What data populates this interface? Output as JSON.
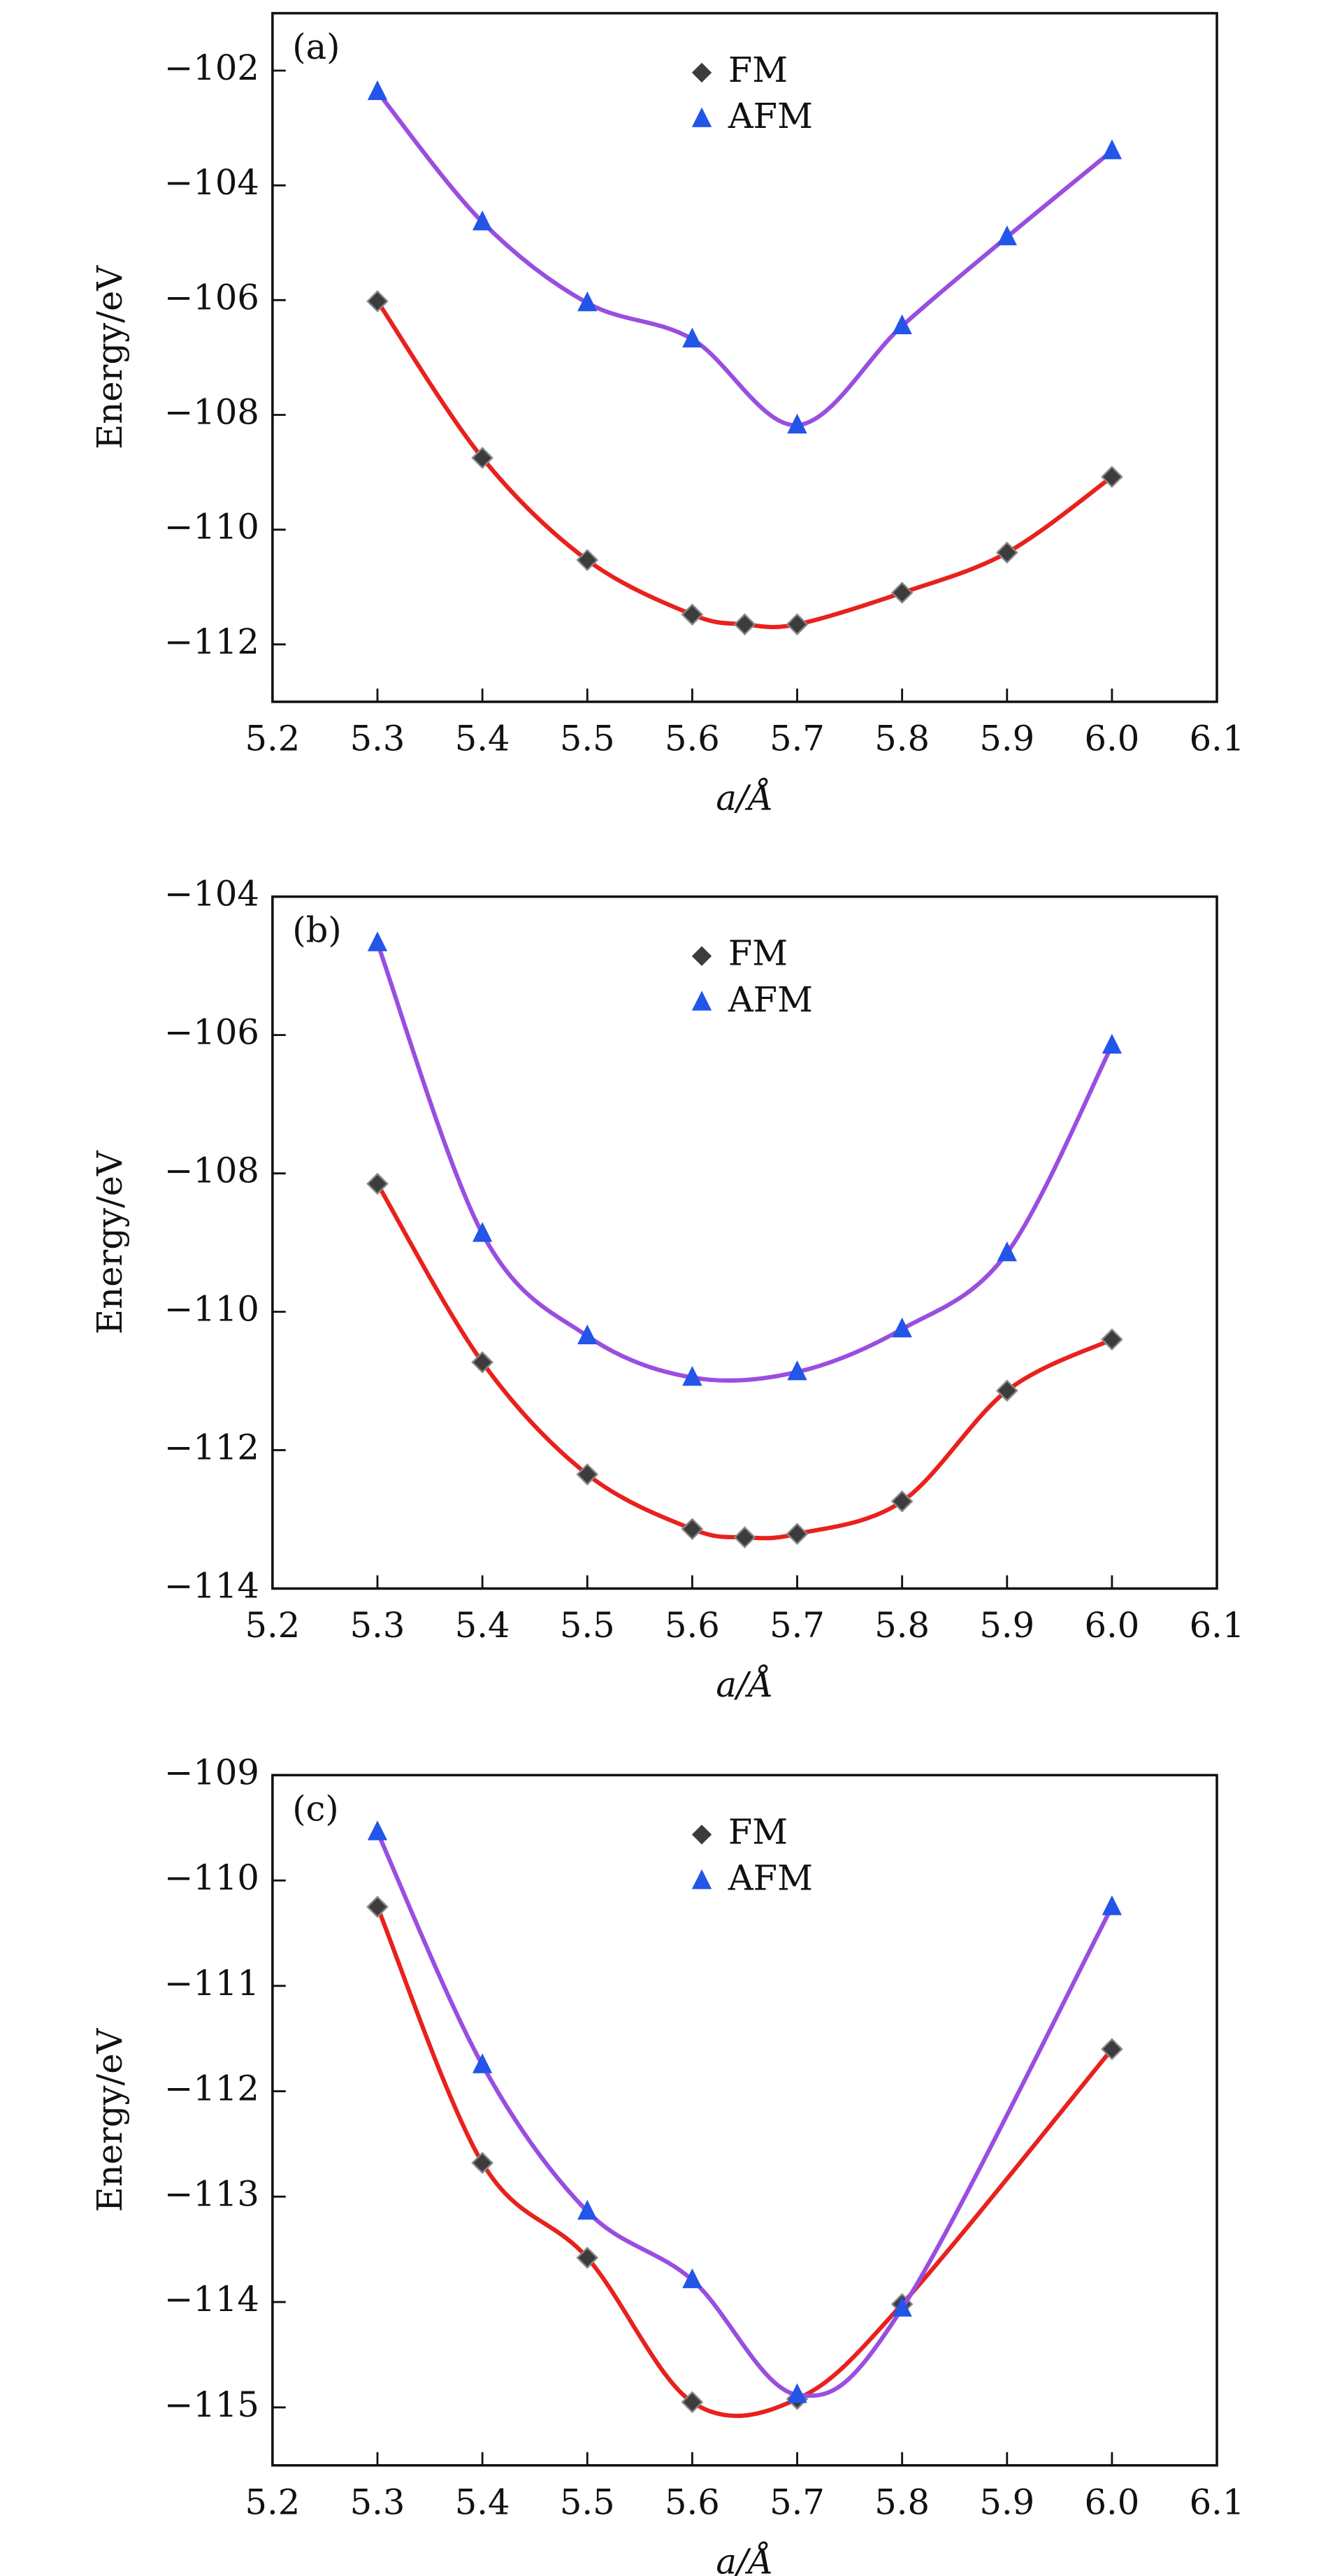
{
  "chart_data": [
    {
      "type": "scatter",
      "label": "(a)",
      "xlabel": "a/Å",
      "ylabel": "Energy/eV",
      "xlim": [
        5.2,
        6.1
      ],
      "ylim": [
        -113,
        -101
      ],
      "xticks": [
        5.2,
        5.3,
        5.4,
        5.5,
        5.6,
        5.7,
        5.8,
        5.9,
        {
          "value": 6,
          "label": "6.0"
        },
        6.1
      ],
      "yticks": [
        {
          "value": -102,
          "label": "−102"
        },
        {
          "value": -104,
          "label": "−104"
        },
        {
          "value": -106,
          "label": "−106"
        },
        {
          "value": -108,
          "label": "−108"
        },
        {
          "value": -110,
          "label": "−110"
        },
        {
          "value": -112,
          "label": "−112"
        }
      ],
      "legend": "top-center",
      "series": [
        {
          "name": "FM",
          "color": "#3c3c3c",
          "line_color": "#e8211d",
          "marker": "diamond",
          "x": [
            5.3,
            5.4,
            5.5,
            5.6,
            5.65,
            5.7,
            5.8,
            5.9,
            6.0
          ],
          "values": [
            -106.02,
            -108.75,
            -110.53,
            -111.48,
            -111.65,
            -111.65,
            -111.1,
            -110.4,
            -109.08
          ]
        },
        {
          "name": "AFM",
          "color": "#2255e8",
          "line_color": "#9a4ee0",
          "marker": "triangle",
          "x": [
            5.3,
            5.4,
            5.5,
            5.6,
            5.7,
            5.8,
            5.9,
            6.0
          ],
          "values": [
            -102.37,
            -104.64,
            -106.05,
            -106.68,
            -108.18,
            -106.45,
            -104.9,
            -103.4
          ]
        }
      ]
    },
    {
      "type": "scatter",
      "label": "(b)",
      "xlabel": "a/Å",
      "ylabel": "Energy/eV",
      "xlim": [
        5.2,
        6.1
      ],
      "ylim": [
        -114,
        -104
      ],
      "xticks": [
        5.2,
        5.3,
        5.4,
        5.5,
        5.6,
        5.7,
        5.8,
        5.9,
        {
          "value": 6,
          "label": "6.0"
        },
        6.1
      ],
      "yticks": [
        {
          "value": -104,
          "label": "−104"
        },
        {
          "value": -106,
          "label": "−106"
        },
        {
          "value": -108,
          "label": "−108"
        },
        {
          "value": -110,
          "label": "−110"
        },
        {
          "value": -112,
          "label": "−112"
        },
        {
          "value": -114,
          "label": "−114"
        }
      ],
      "legend": "top-center",
      "series": [
        {
          "name": "FM",
          "color": "#3c3c3c",
          "line_color": "#e8211d",
          "marker": "diamond",
          "x": [
            5.3,
            5.4,
            5.5,
            5.6,
            5.65,
            5.7,
            5.8,
            5.9,
            6.0
          ],
          "values": [
            -108.15,
            -110.73,
            -112.35,
            -113.14,
            -113.26,
            -113.21,
            -112.74,
            -111.14,
            -110.4
          ]
        },
        {
          "name": "AFM",
          "color": "#2255e8",
          "line_color": "#9a4ee0",
          "marker": "triangle",
          "x": [
            5.3,
            5.4,
            5.5,
            5.6,
            5.7,
            5.8,
            5.9,
            6.0
          ],
          "values": [
            -104.67,
            -108.87,
            -110.35,
            -110.95,
            -110.87,
            -110.25,
            -109.15,
            -106.15
          ]
        }
      ]
    },
    {
      "type": "scatter",
      "label": "(c)",
      "xlabel": "a/Å",
      "ylabel": "Energy/eV",
      "xlim": [
        5.2,
        6.1
      ],
      "ylim": [
        -115.55,
        -109
      ],
      "xticks": [
        5.2,
        5.3,
        5.4,
        5.5,
        5.6,
        5.7,
        5.8,
        5.9,
        {
          "value": 6,
          "label": "6.0"
        },
        6.1
      ],
      "yticks": [
        {
          "value": -109,
          "label": "−109"
        },
        {
          "value": -110,
          "label": "−110"
        },
        {
          "value": -111,
          "label": "−111"
        },
        {
          "value": -112,
          "label": "−112"
        },
        {
          "value": -113,
          "label": "−113"
        },
        {
          "value": -114,
          "label": "−114"
        },
        {
          "value": -115,
          "label": "−115"
        }
      ],
      "legend": "top-center",
      "series": [
        {
          "name": "FM",
          "color": "#3c3c3c",
          "line_color": "#e8211d",
          "marker": "diamond",
          "x": [
            5.3,
            5.4,
            5.5,
            5.6,
            5.7,
            5.8,
            6.0
          ],
          "values": [
            -110.25,
            -112.68,
            -113.58,
            -114.95,
            -114.92,
            -114.02,
            -111.6
          ]
        },
        {
          "name": "AFM",
          "color": "#2255e8",
          "line_color": "#9a4ee0",
          "marker": "triangle",
          "x": [
            5.3,
            5.4,
            5.5,
            5.6,
            5.7,
            5.8,
            6.0
          ],
          "values": [
            -109.54,
            -111.75,
            -113.14,
            -113.79,
            -114.88,
            -114.06,
            -110.25
          ]
        }
      ]
    }
  ]
}
